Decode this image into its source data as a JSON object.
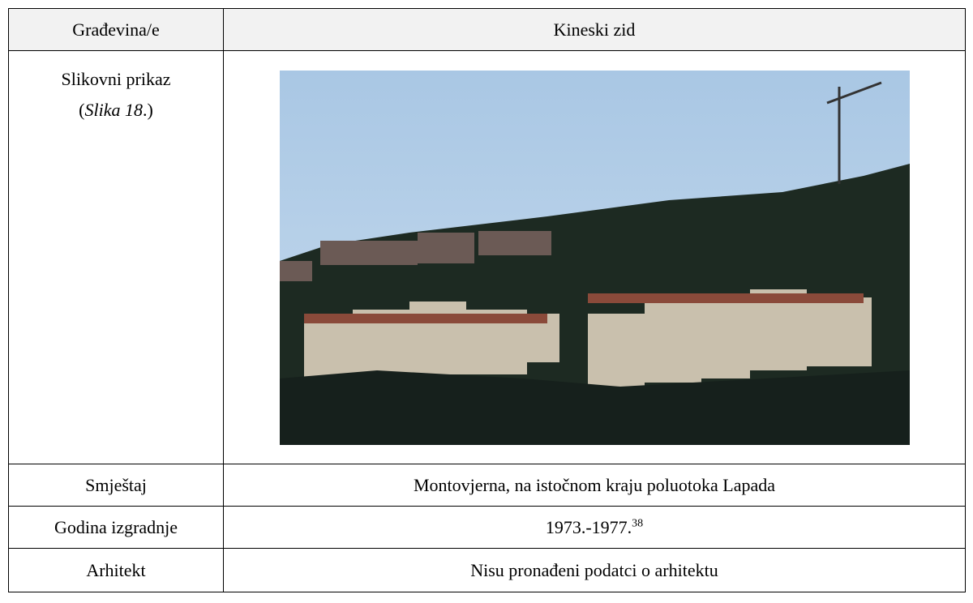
{
  "table": {
    "header": {
      "label": "Građevina/e",
      "value": "Kineski zid"
    },
    "image_row": {
      "label": "Slikovni prikaz",
      "ref_open": "(",
      "ref": "Slika 18",
      "ref_close": ".)"
    },
    "rows": [
      {
        "label": "Smještaj",
        "value": "Montovjerna, na istočnom kraju poluotoka Lapada"
      },
      {
        "label": "Godina izgradnje",
        "value": "1973.-1977.",
        "footnote": "38"
      },
      {
        "label": "Arhitekt",
        "value": "Nisu pronađeni podatci o arhitektu"
      }
    ]
  }
}
